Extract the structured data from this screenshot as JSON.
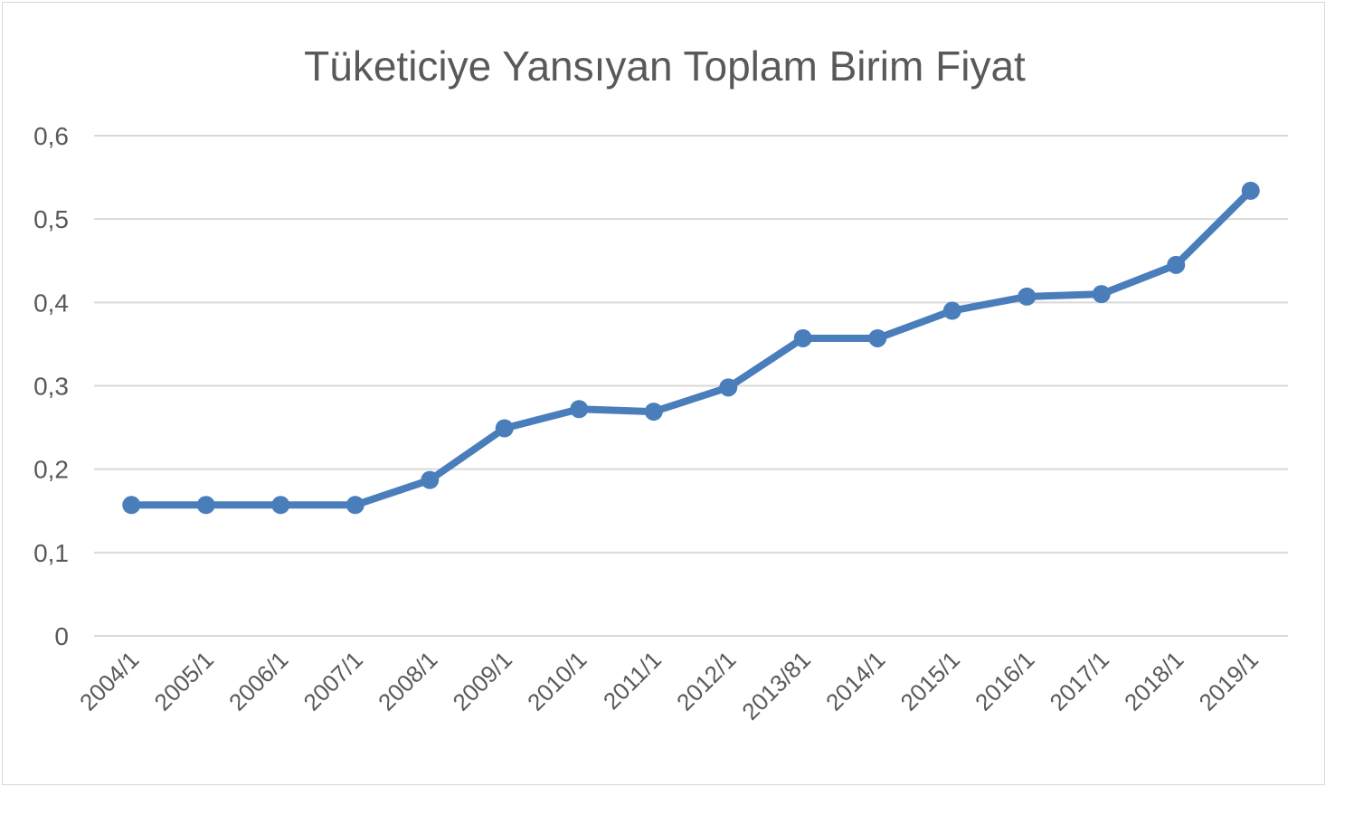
{
  "chart_data": {
    "type": "line",
    "title": "Tüketiciye Yansıyan Toplam Birim Fiyat",
    "xlabel": "",
    "ylabel": "",
    "categories": [
      "2004/1",
      "2005/1",
      "2006/1",
      "2007/1",
      "2008/1",
      "2009/1",
      "2010/1",
      "2011/1",
      "2012/1",
      "2013/81",
      "2014/1",
      "2015/1",
      "2016/1",
      "2017/1",
      "2018/1",
      "2019/1"
    ],
    "series": [
      {
        "values": [
          0.157,
          0.157,
          0.157,
          0.157,
          0.187,
          0.249,
          0.272,
          0.269,
          0.298,
          0.357,
          0.357,
          0.39,
          0.407,
          0.41,
          0.445,
          0.534
        ],
        "color": "#4a7ebb"
      }
    ],
    "ylim": [
      0,
      0.6
    ],
    "yticks": [
      "0",
      "0,1",
      "0,2",
      "0,3",
      "0,4",
      "0,5",
      "0,6"
    ],
    "grid": true,
    "legend": "none",
    "markers": true
  }
}
